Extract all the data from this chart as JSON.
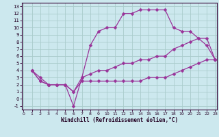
{
  "xlabel": "Windchill (Refroidissement éolien,°C)",
  "bg_color": "#cce8ee",
  "grid_color": "#aacccc",
  "line_color": "#993399",
  "line1_x": [
    1,
    2,
    3,
    4,
    5,
    6,
    7,
    8,
    9,
    10,
    11,
    12,
    13,
    14,
    15,
    16,
    17,
    18,
    19,
    20,
    21,
    22,
    23
  ],
  "line1_y": [
    4,
    3,
    2,
    2,
    2,
    -1,
    3,
    7.5,
    9.5,
    10,
    10,
    12,
    12,
    12.5,
    12.5,
    12.5,
    12.5,
    10,
    9.5,
    9.5,
    8.5,
    7.5,
    5.5
  ],
  "line2_x": [
    1,
    2,
    3,
    4,
    5,
    6,
    7,
    8,
    9,
    10,
    11,
    12,
    13,
    14,
    15,
    16,
    17,
    18,
    19,
    20,
    21,
    22,
    23
  ],
  "line2_y": [
    4,
    2.5,
    2,
    2,
    2,
    1,
    2.5,
    2.5,
    2.5,
    2.5,
    2.5,
    2.5,
    2.5,
    2.5,
    3,
    3,
    3,
    3.5,
    4,
    4.5,
    5,
    5.5,
    5.5
  ],
  "line3_x": [
    1,
    2,
    3,
    4,
    5,
    6,
    7,
    8,
    9,
    10,
    11,
    12,
    13,
    14,
    15,
    16,
    17,
    18,
    19,
    20,
    21,
    22,
    23
  ],
  "line3_y": [
    4,
    2.5,
    2,
    2,
    2,
    1,
    3,
    3.5,
    4,
    4,
    4.5,
    5,
    5,
    5.5,
    5.5,
    6,
    6,
    7,
    7.5,
    8,
    8.5,
    8.5,
    5.5
  ],
  "xlim": [
    -0.2,
    23.2
  ],
  "ylim": [
    -1.5,
    13.5
  ],
  "xticks": [
    0,
    1,
    2,
    3,
    4,
    5,
    6,
    7,
    8,
    9,
    10,
    11,
    12,
    13,
    14,
    15,
    16,
    17,
    18,
    19,
    20,
    21,
    22,
    23
  ],
  "yticks": [
    -1,
    0,
    1,
    2,
    3,
    4,
    5,
    6,
    7,
    8,
    9,
    10,
    11,
    12,
    13
  ]
}
